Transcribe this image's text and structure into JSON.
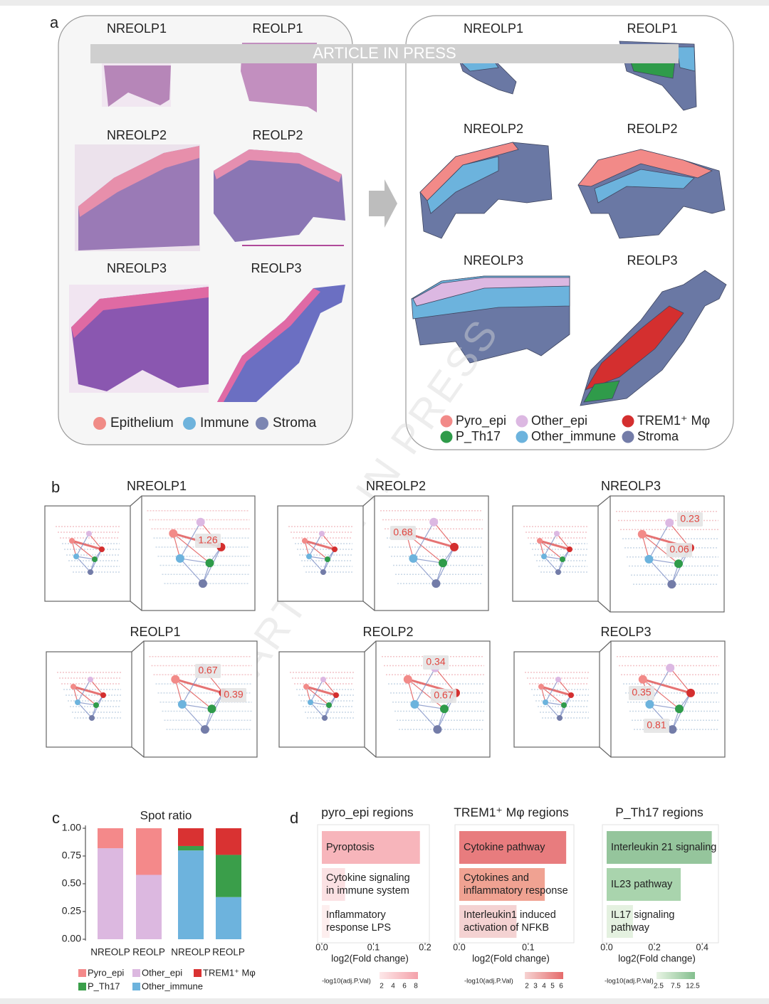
{
  "watermark": "ARTICLE IN PRESS",
  "panel_labels": [
    "a",
    "b",
    "c",
    "d"
  ],
  "panel_a": {
    "left_titles": [
      "NREOLP1",
      "REOLP1",
      "NREOLP2",
      "REOLP2",
      "NREOLP3",
      "REOLP3"
    ],
    "right_titles": [
      "NREOLP1",
      "REOLP1",
      "NREOLP2",
      "REOLP2",
      "NREOLP3",
      "REOLP3"
    ],
    "left_legend": [
      {
        "name": "Epithelium",
        "color": "#f08b86"
      },
      {
        "name": "Immune",
        "color": "#6eb3dc"
      },
      {
        "name": "Stroma",
        "color": "#7c86b2"
      }
    ],
    "right_legend": [
      {
        "name": "Pyro_epi",
        "color": "#f28a88"
      },
      {
        "name": "Other_epi",
        "color": "#dcb8e2"
      },
      {
        "name": "TREM1⁺ Mφ",
        "color": "#d42f2f"
      },
      {
        "name": "P_Th17",
        "color": "#2f9b4a"
      },
      {
        "name": "Other_immune",
        "color": "#6cb3dd"
      },
      {
        "name": "Stroma",
        "color": "#737ca8"
      }
    ]
  },
  "panel_b": {
    "samples": [
      {
        "title": "NREOLP1",
        "labels": [
          1.26
        ]
      },
      {
        "title": "NREOLP2",
        "labels": [
          0.68
        ]
      },
      {
        "title": "NREOLP3",
        "labels": [
          0.23,
          0.06
        ]
      },
      {
        "title": "REOLP1",
        "labels": [
          0.67,
          0.39
        ]
      },
      {
        "title": "REOLP2",
        "labels": [
          0.34,
          0.67
        ]
      },
      {
        "title": "REOLP3",
        "labels": [
          0.35,
          0.81
        ]
      }
    ]
  },
  "chart_data": [
    {
      "type": "stacked_bar",
      "title": "Spot ratio",
      "categories": [
        "NREOLP",
        "REOLP",
        "NREOLP",
        "REOLP"
      ],
      "series": [
        {
          "name": "Pyro_epi",
          "color": "#f4898a",
          "values": [
            0.18,
            0.42,
            null,
            null
          ]
        },
        {
          "name": "Other_epi",
          "color": "#dcb8e0",
          "values": [
            0.82,
            0.58,
            null,
            null
          ]
        },
        {
          "name": "TREM1⁺ Mφ",
          "color": "#d93232",
          "values": [
            null,
            null,
            0.16,
            0.24
          ]
        },
        {
          "name": "P_Th17",
          "color": "#3a9e4a",
          "values": [
            null,
            null,
            0.04,
            0.38
          ]
        },
        {
          "name": "Other_immune",
          "color": "#6db3dd",
          "values": [
            null,
            null,
            0.8,
            0.38
          ]
        }
      ],
      "ylim": [
        0,
        1
      ],
      "yticks": [
        {
          "value": 0,
          "label": "0.00"
        },
        {
          "value": 0.25,
          "label": "0.25"
        },
        {
          "value": 0.5,
          "label": "0.50"
        },
        {
          "value": 0.75,
          "label": "0.75"
        },
        {
          "value": 1,
          "label": "1.00"
        }
      ]
    },
    {
      "type": "hbar",
      "title": "pyro_epi regions",
      "categories": [
        [
          "Pyroptosis"
        ],
        [
          "Cytokine signaling",
          "in immune system"
        ],
        [
          "Inflammatory",
          "response LPS"
        ]
      ],
      "values": [
        0.19,
        0.045,
        0.015
      ],
      "colors": [
        "#f7b5bb",
        "#fbe1e3",
        "#fdeeee"
      ],
      "xlim": [
        0,
        0.2
      ],
      "xticks": [
        {
          "value": 0,
          "label": "0.0"
        },
        0.1,
        0.2
      ],
      "xlabel": "log2(Fold change)",
      "colorbar": {
        "title": "-log10(adj.P.Val)",
        "ticks": [
          2,
          4,
          6,
          8
        ],
        "colors": [
          "#fde8e9",
          "#f4a1aa"
        ]
      }
    },
    {
      "type": "hbar",
      "title": "TREM1⁺ Mφ regions",
      "categories": [
        [
          "Cytokine pathway"
        ],
        [
          "Cytokines and",
          "inflammatory response"
        ],
        [
          "Interleukin1 induced",
          "activation of NFKB"
        ]
      ],
      "values": [
        0.155,
        0.124,
        0.083
      ],
      "colors": [
        "#e87c7e",
        "#f0a292",
        "#f4d2d2"
      ],
      "xlim": [
        0,
        0.16
      ],
      "xticks": [
        {
          "value": 0,
          "label": "0.0"
        },
        0.1
      ],
      "xlabel": "log2(Fold change)",
      "colorbar": {
        "title": "-log10(adj.P.Val)",
        "ticks": [
          2,
          3,
          4,
          5,
          6
        ],
        "colors": [
          "#f6d3d2",
          "#e56b6b"
        ]
      }
    },
    {
      "type": "hbar",
      "title": "P_Th17 regions",
      "categories": [
        [
          "Interleukin 21 signaling"
        ],
        [
          "IL23 pathway"
        ],
        [
          "IL17 signaling",
          "pathway"
        ]
      ],
      "values": [
        0.44,
        0.31,
        0.11
      ],
      "colors": [
        "#95c59c",
        "#a9d4ad",
        "#e4f1e0"
      ],
      "xlim": [
        0,
        0.45
      ],
      "xticks": [
        {
          "value": 0,
          "label": "0.0"
        },
        0.2,
        0.4
      ],
      "xlabel": "log2(Fold change)",
      "colorbar": {
        "title": "-log10(adj.P.Val)",
        "ticks": [
          2.5,
          7.5,
          12.5
        ],
        "colors": [
          "#e8f4e4",
          "#84bf8e"
        ]
      }
    }
  ]
}
